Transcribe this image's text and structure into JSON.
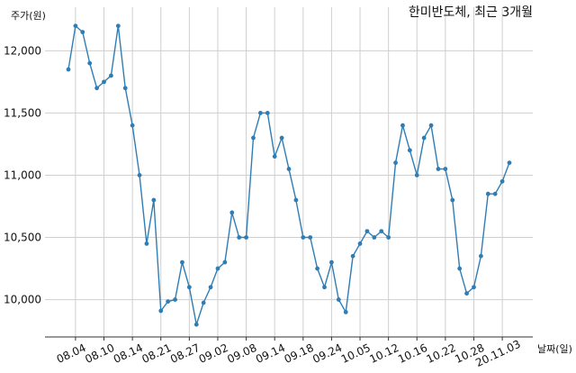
{
  "chart_data": {
    "type": "line",
    "title": "한미반도체, 최근 3개월",
    "xlabel": "날짜(일)",
    "ylabel": "주가(원)",
    "y_ticks": [
      10000,
      10500,
      11000,
      11500,
      12000
    ],
    "y_tick_labels": [
      "10,000",
      "10,500",
      "11,000",
      "11,500",
      "12,000"
    ],
    "ylim": [
      9700,
      12350
    ],
    "x_tick_labels": [
      "08.04",
      "08.10",
      "08.14",
      "08.21",
      "08.27",
      "09.02",
      "09.08",
      "09.14",
      "09.18",
      "09.24",
      "10.05",
      "10.12",
      "10.16",
      "10.22",
      "10.28",
      "20.11.03"
    ],
    "x_tick_index": [
      1,
      5,
      9,
      13,
      17,
      21,
      25,
      29,
      33,
      37,
      41,
      45,
      49,
      53,
      57,
      61
    ],
    "grid": true,
    "color": "#2f7db5",
    "series": [
      {
        "values": [
          11850,
          12200,
          12150,
          11900,
          11700,
          11750,
          11800,
          12200,
          11700,
          11400,
          11000,
          10450,
          10800,
          9910,
          9985,
          10000,
          10300,
          10100,
          9800,
          9975,
          10100,
          10250,
          10300,
          10700,
          10500,
          10500,
          11300,
          11500,
          11500,
          11150,
          11300,
          11050,
          10800,
          10500,
          10500,
          10250,
          10100,
          10300,
          10000,
          9900,
          10350,
          10450,
          10550,
          10500,
          10550,
          10500,
          11100,
          11400,
          11200,
          11000,
          11300,
          11400,
          11050,
          11050,
          10800,
          10250,
          10050,
          10100,
          10350,
          10850,
          10850,
          10950,
          11100
        ]
      }
    ]
  }
}
